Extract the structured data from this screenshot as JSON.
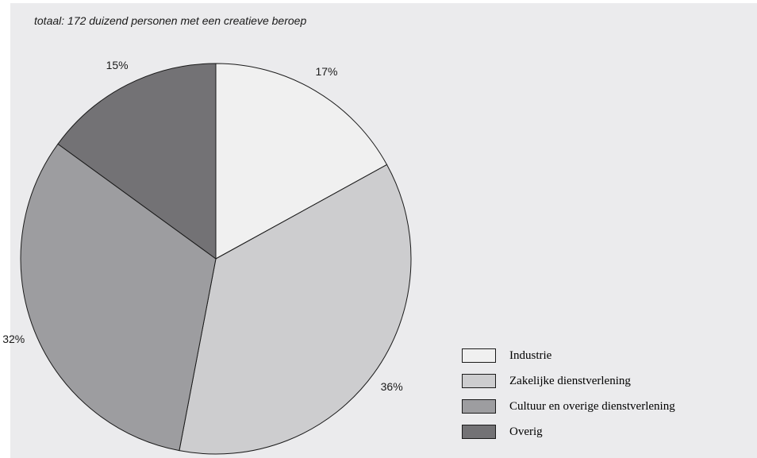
{
  "chart_data": {
    "type": "pie",
    "subtitle": "totaal: 172 duizend personen met een creatieve beroep",
    "slices": [
      {
        "label": "Industrie",
        "value": 17,
        "display": "17%",
        "color": "#f0f0f0"
      },
      {
        "label": "Zakelijke dienstverlening",
        "value": 36,
        "display": "36%",
        "color": "#cdcdcf"
      },
      {
        "label": "Cultuur en overige dienstverlening",
        "value": 32,
        "display": "32%",
        "color": "#9d9da0"
      },
      {
        "label": "Overig",
        "value": 15,
        "display": "15%",
        "color": "#737275"
      }
    ],
    "start_angle_deg": 0,
    "direction": "clockwise",
    "legend_position": "bottom-right"
  }
}
